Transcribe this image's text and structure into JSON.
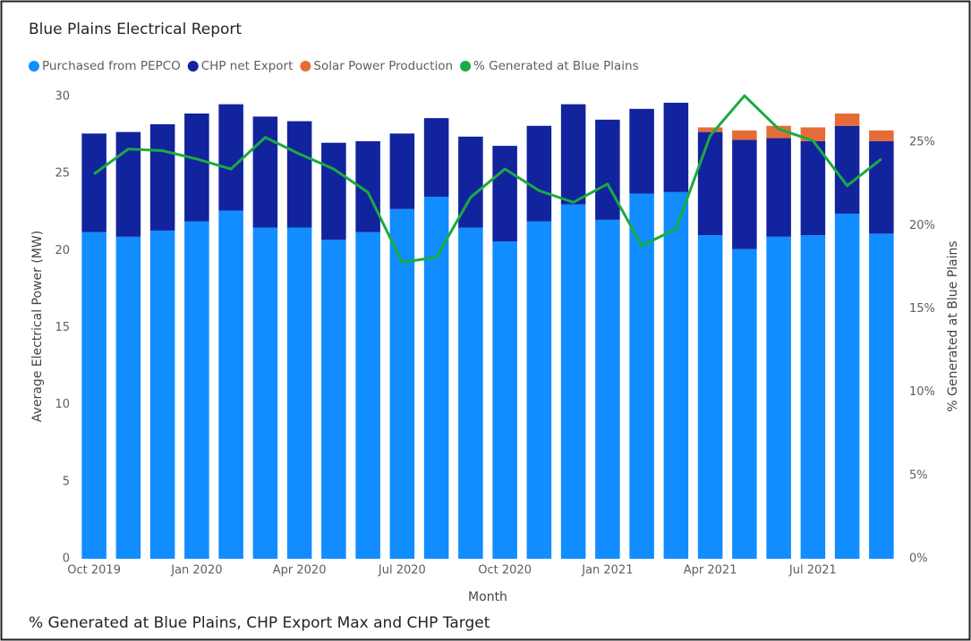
{
  "chart_data": {
    "type": "bar",
    "title": "Blue Plains Electrical Report",
    "x_label": "Month",
    "y_label": "Average Electrical Power (MW)",
    "y2_label": "% Generated at Blue Plains",
    "next_visual_title": "% Generated at Blue Plains, CHP Export Max and CHP Target",
    "categories": [
      "Oct 2019",
      null,
      null,
      "Jan 2020",
      null,
      null,
      "Apr 2020",
      null,
      null,
      "Jul 2020",
      null,
      null,
      "Oct 2020",
      null,
      null,
      "Jan 2021",
      null,
      null,
      "Apr 2021",
      null,
      null,
      "Jul 2021",
      null,
      null
    ],
    "stacked": true,
    "series": [
      {
        "name": "Purchased from PEPCO",
        "color": "#118dff",
        "values": [
          21.2,
          20.9,
          21.3,
          21.9,
          22.6,
          21.5,
          21.5,
          20.7,
          21.2,
          22.7,
          23.5,
          21.5,
          20.6,
          21.9,
          23.0,
          22.0,
          23.7,
          23.8,
          21.0,
          20.1,
          20.9,
          21.0,
          22.4,
          21.1
        ]
      },
      {
        "name": "CHP net Export",
        "color": "#12239e",
        "values": [
          6.4,
          6.8,
          6.9,
          7.0,
          6.9,
          7.2,
          6.9,
          6.3,
          5.9,
          4.9,
          5.1,
          5.9,
          6.2,
          6.2,
          6.5,
          6.5,
          5.5,
          5.8,
          6.7,
          7.1,
          6.4,
          6.1,
          5.7,
          6.0
        ]
      },
      {
        "name": "Solar Power Production",
        "color": "#e66c37",
        "values": [
          0,
          0,
          0,
          0,
          0,
          0,
          0,
          0,
          0,
          0,
          0,
          0,
          0,
          0,
          0,
          0,
          0,
          0,
          0.3,
          0.6,
          0.8,
          0.9,
          0.8,
          0.7
        ]
      },
      {
        "name": "% Generated at Blue Plains",
        "color": "#1aab40",
        "type": "line",
        "axis": "y2",
        "values": [
          23.1,
          24.6,
          24.5,
          24.0,
          23.4,
          25.3,
          24.3,
          23.4,
          22.0,
          17.8,
          18.1,
          21.7,
          23.4,
          22.1,
          21.4,
          22.5,
          18.8,
          19.8,
          25.4,
          27.8,
          25.8,
          25.1,
          22.4,
          24.0
        ]
      }
    ],
    "ylim": [
      0,
      30
    ],
    "yticks": [
      0,
      5,
      10,
      15,
      20,
      25,
      30
    ],
    "y2lim": [
      0,
      27.75
    ],
    "y2ticks": [
      {
        "value": 0,
        "label": "0%"
      },
      {
        "value": 5,
        "label": "5%"
      },
      {
        "value": 10,
        "label": "10%"
      },
      {
        "value": 15,
        "label": "15%"
      },
      {
        "value": 20,
        "label": "20%"
      },
      {
        "value": 25,
        "label": "25%"
      }
    ],
    "legend": "top-left"
  }
}
